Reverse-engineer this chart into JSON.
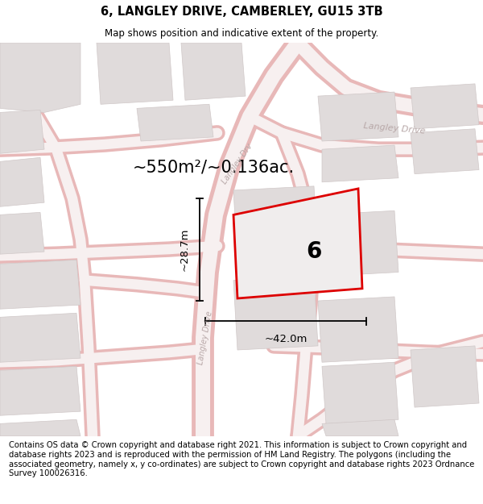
{
  "title": "6, LANGLEY DRIVE, CAMBERLEY, GU15 3TB",
  "subtitle": "Map shows position and indicative extent of the property.",
  "footer": "Contains OS data © Crown copyright and database right 2021. This information is subject to Crown copyright and database rights 2023 and is reproduced with the permission of HM Land Registry. The polygons (including the associated geometry, namely x, y co-ordinates) are subject to Crown copyright and database rights 2023 Ordnance Survey 100026316.",
  "area_text": "~550m²/~0.136ac.",
  "dim_width": "~42.0m",
  "dim_height": "~28.7m",
  "plot_number": "6",
  "map_bg": "#f9f6f6",
  "road_outline_color": "#e8b8b8",
  "road_fill_color": "#f7f0f0",
  "block_fill_color": "#e0dbdb",
  "block_edge_color": "#d0c8c8",
  "plot_fill": "#f0eded",
  "plot_edge_color": "#dd0000",
  "road_label_color": "#b8a8a8",
  "title_fontsize": 10.5,
  "subtitle_fontsize": 8.5,
  "footer_fontsize": 7.2,
  "area_fontsize": 15,
  "dim_fontsize": 9.5,
  "plot_label_fontsize": 20
}
